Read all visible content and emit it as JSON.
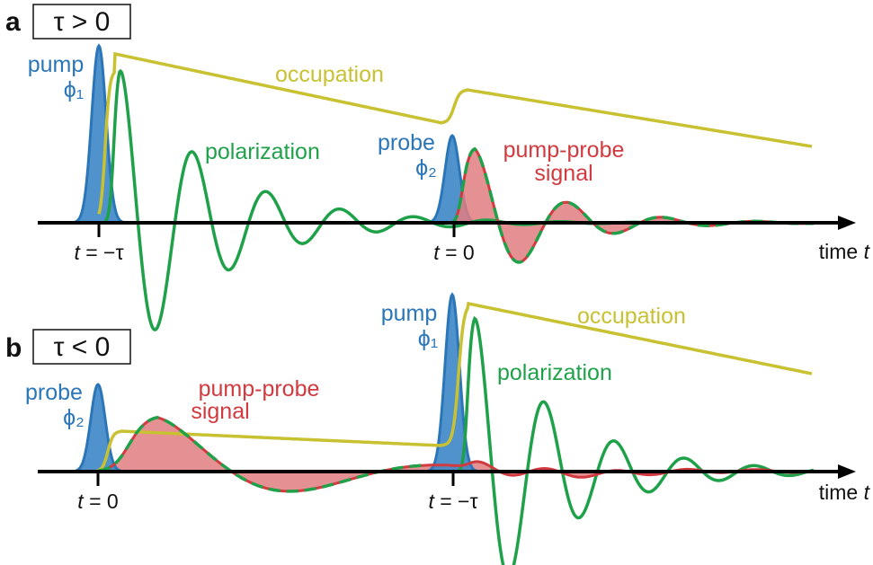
{
  "colors": {
    "pump": "#2b76b9",
    "pump_fill": "#3d86c6",
    "occupation": "#c8c132",
    "polarization": "#1fa14a",
    "signal": "#d13a3f",
    "signal_fill": "#e07d80",
    "axis": "#000000"
  },
  "panel_a": {
    "letter": "a",
    "tau_condition": "τ > 0",
    "pump_label": "pump",
    "pump_phase": "ϕ₁",
    "probe_label": "probe",
    "probe_phase": "ϕ₂",
    "occupation_label": "occupation",
    "polarization_label": "polarization",
    "signal_label_1": "pump-probe",
    "signal_label_2": "signal",
    "tick_1_var": "t",
    "tick_1_rest": " = −τ",
    "tick_2_var": "t",
    "tick_2_rest": " = 0",
    "axis_label_word": "time ",
    "axis_label_var": "t"
  },
  "panel_b": {
    "letter": "b",
    "tau_condition": "τ < 0",
    "pump_label": "pump",
    "pump_phase": "ϕ₁",
    "probe_label": "probe",
    "probe_phase": "ϕ₂",
    "occupation_label": "occupation",
    "polarization_label": "polarization",
    "signal_label_1": "pump-probe",
    "signal_label_2": "signal",
    "tick_1_var": "t",
    "tick_1_rest": " = 0",
    "tick_2_var": "t",
    "tick_2_rest": " = −τ",
    "axis_label_word": "time ",
    "axis_label_var": "t"
  }
}
